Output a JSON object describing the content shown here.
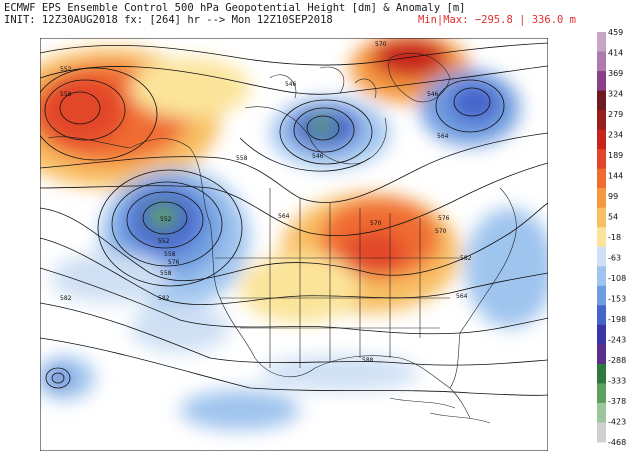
{
  "header": {
    "title": "ECMWF EPS Ensemble Control 500 hPa Geopotential Height [dm] & Anomaly [m]",
    "init": "INIT: 12Z30AUG2018 fx: [264] hr --> Mon 12Z10SEP2018",
    "minmax": "Min|Max: −295.8 | 336.0 m"
  },
  "colorbar": {
    "ticks": [
      "459",
      "414",
      "369",
      "324",
      "279",
      "234",
      "189",
      "144",
      "99",
      "54",
      "-18",
      "-63",
      "-108",
      "-153",
      "-198",
      "-243",
      "-288",
      "-333",
      "-378",
      "-423",
      "-468"
    ],
    "colors": [
      "#c6a5c6",
      "#b07ab0",
      "#8a3f8a",
      "#6e1a20",
      "#9a1d1d",
      "#c8241d",
      "#e2462a",
      "#f06c30",
      "#f59840",
      "#f8be62",
      "#fbe49a",
      "#cfe0f4",
      "#9fc4ee",
      "#6f9de0",
      "#4664cc",
      "#3a35a8",
      "#5a2f8e",
      "#2e7a3e",
      "#5ea05e",
      "#9cc69c",
      "#d0d0d0"
    ]
  },
  "contour_labels": [
    "552",
    "546",
    "558",
    "564",
    "570",
    "576",
    "582",
    "588",
    "546",
    "552",
    "558",
    "564",
    "570",
    "576",
    "582",
    "570",
    "558",
    "546",
    "558",
    "564",
    "570",
    "576",
    "582",
    "588",
    "564",
    "582",
    "552",
    "558",
    "552",
    "558",
    "564",
    "582"
  ]
}
